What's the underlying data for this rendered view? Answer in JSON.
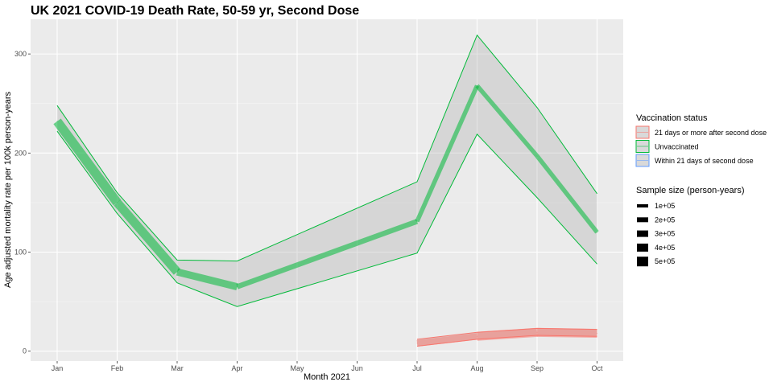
{
  "chart_data": {
    "type": "line",
    "title": "UK 2021 COVID-19 Death Rate, 50-59 yr, Second Dose",
    "xlabel": "Month 2021",
    "ylabel": "Age adjusted mortality rate per 100k person-years",
    "categories": [
      "Jan",
      "Feb",
      "Mar",
      "Apr",
      "May",
      "Jun",
      "Jul",
      "Aug",
      "Sep",
      "Oct"
    ],
    "ylim": [
      -10,
      335
    ],
    "yticks": [
      "0",
      "100",
      "200",
      "300"
    ],
    "grid": true,
    "legend_position": "right",
    "series": [
      {
        "name": "21 days or more after second dose",
        "color": "#F8766D",
        "points": [
          {
            "x": "Jul",
            "y": 8,
            "lower": 5,
            "upper": 12,
            "sample_size": 200000
          },
          {
            "x": "Aug",
            "y": 15,
            "lower": 12,
            "upper": 19,
            "sample_size": 480000
          },
          {
            "x": "Sep",
            "y": 19,
            "lower": 16,
            "upper": 23,
            "sample_size": 480000
          },
          {
            "x": "Oct",
            "y": 18,
            "lower": 15,
            "upper": 22,
            "sample_size": 480000
          }
        ]
      },
      {
        "name": "Unvaccinated",
        "color": "#00BA38",
        "points": [
          {
            "x": "Jan",
            "y": 232,
            "lower": 222,
            "upper": 248,
            "sample_size": 500000
          },
          {
            "x": "Feb",
            "y": 150,
            "lower": 139,
            "upper": 160,
            "sample_size": 500000
          },
          {
            "x": "Mar",
            "y": 80,
            "lower": 69,
            "upper": 92,
            "sample_size": 450000
          },
          {
            "x": "Apr",
            "y": 65,
            "lower": 45,
            "upper": 91,
            "sample_size": 300000
          },
          {
            "x": "Jul",
            "y": 131,
            "lower": 99,
            "upper": 171,
            "sample_size": 200000
          },
          {
            "x": "Aug",
            "y": 268,
            "lower": 219,
            "upper": 319,
            "sample_size": 200000
          },
          {
            "x": "Sep",
            "y": 197,
            "lower": 155,
            "upper": 246,
            "sample_size": 200000
          },
          {
            "x": "Oct",
            "y": 120,
            "lower": 88,
            "upper": 159,
            "sample_size": 200000
          }
        ]
      },
      {
        "name": "Within 21 days of second dose",
        "color": "#619CFF",
        "points": []
      }
    ],
    "legend_color_title": "Vaccination status",
    "legend_size_title": "Sample size (person-years)",
    "size_legend": [
      "1e+05",
      "2e+05",
      "3e+05",
      "4e+05",
      "5e+05"
    ]
  }
}
